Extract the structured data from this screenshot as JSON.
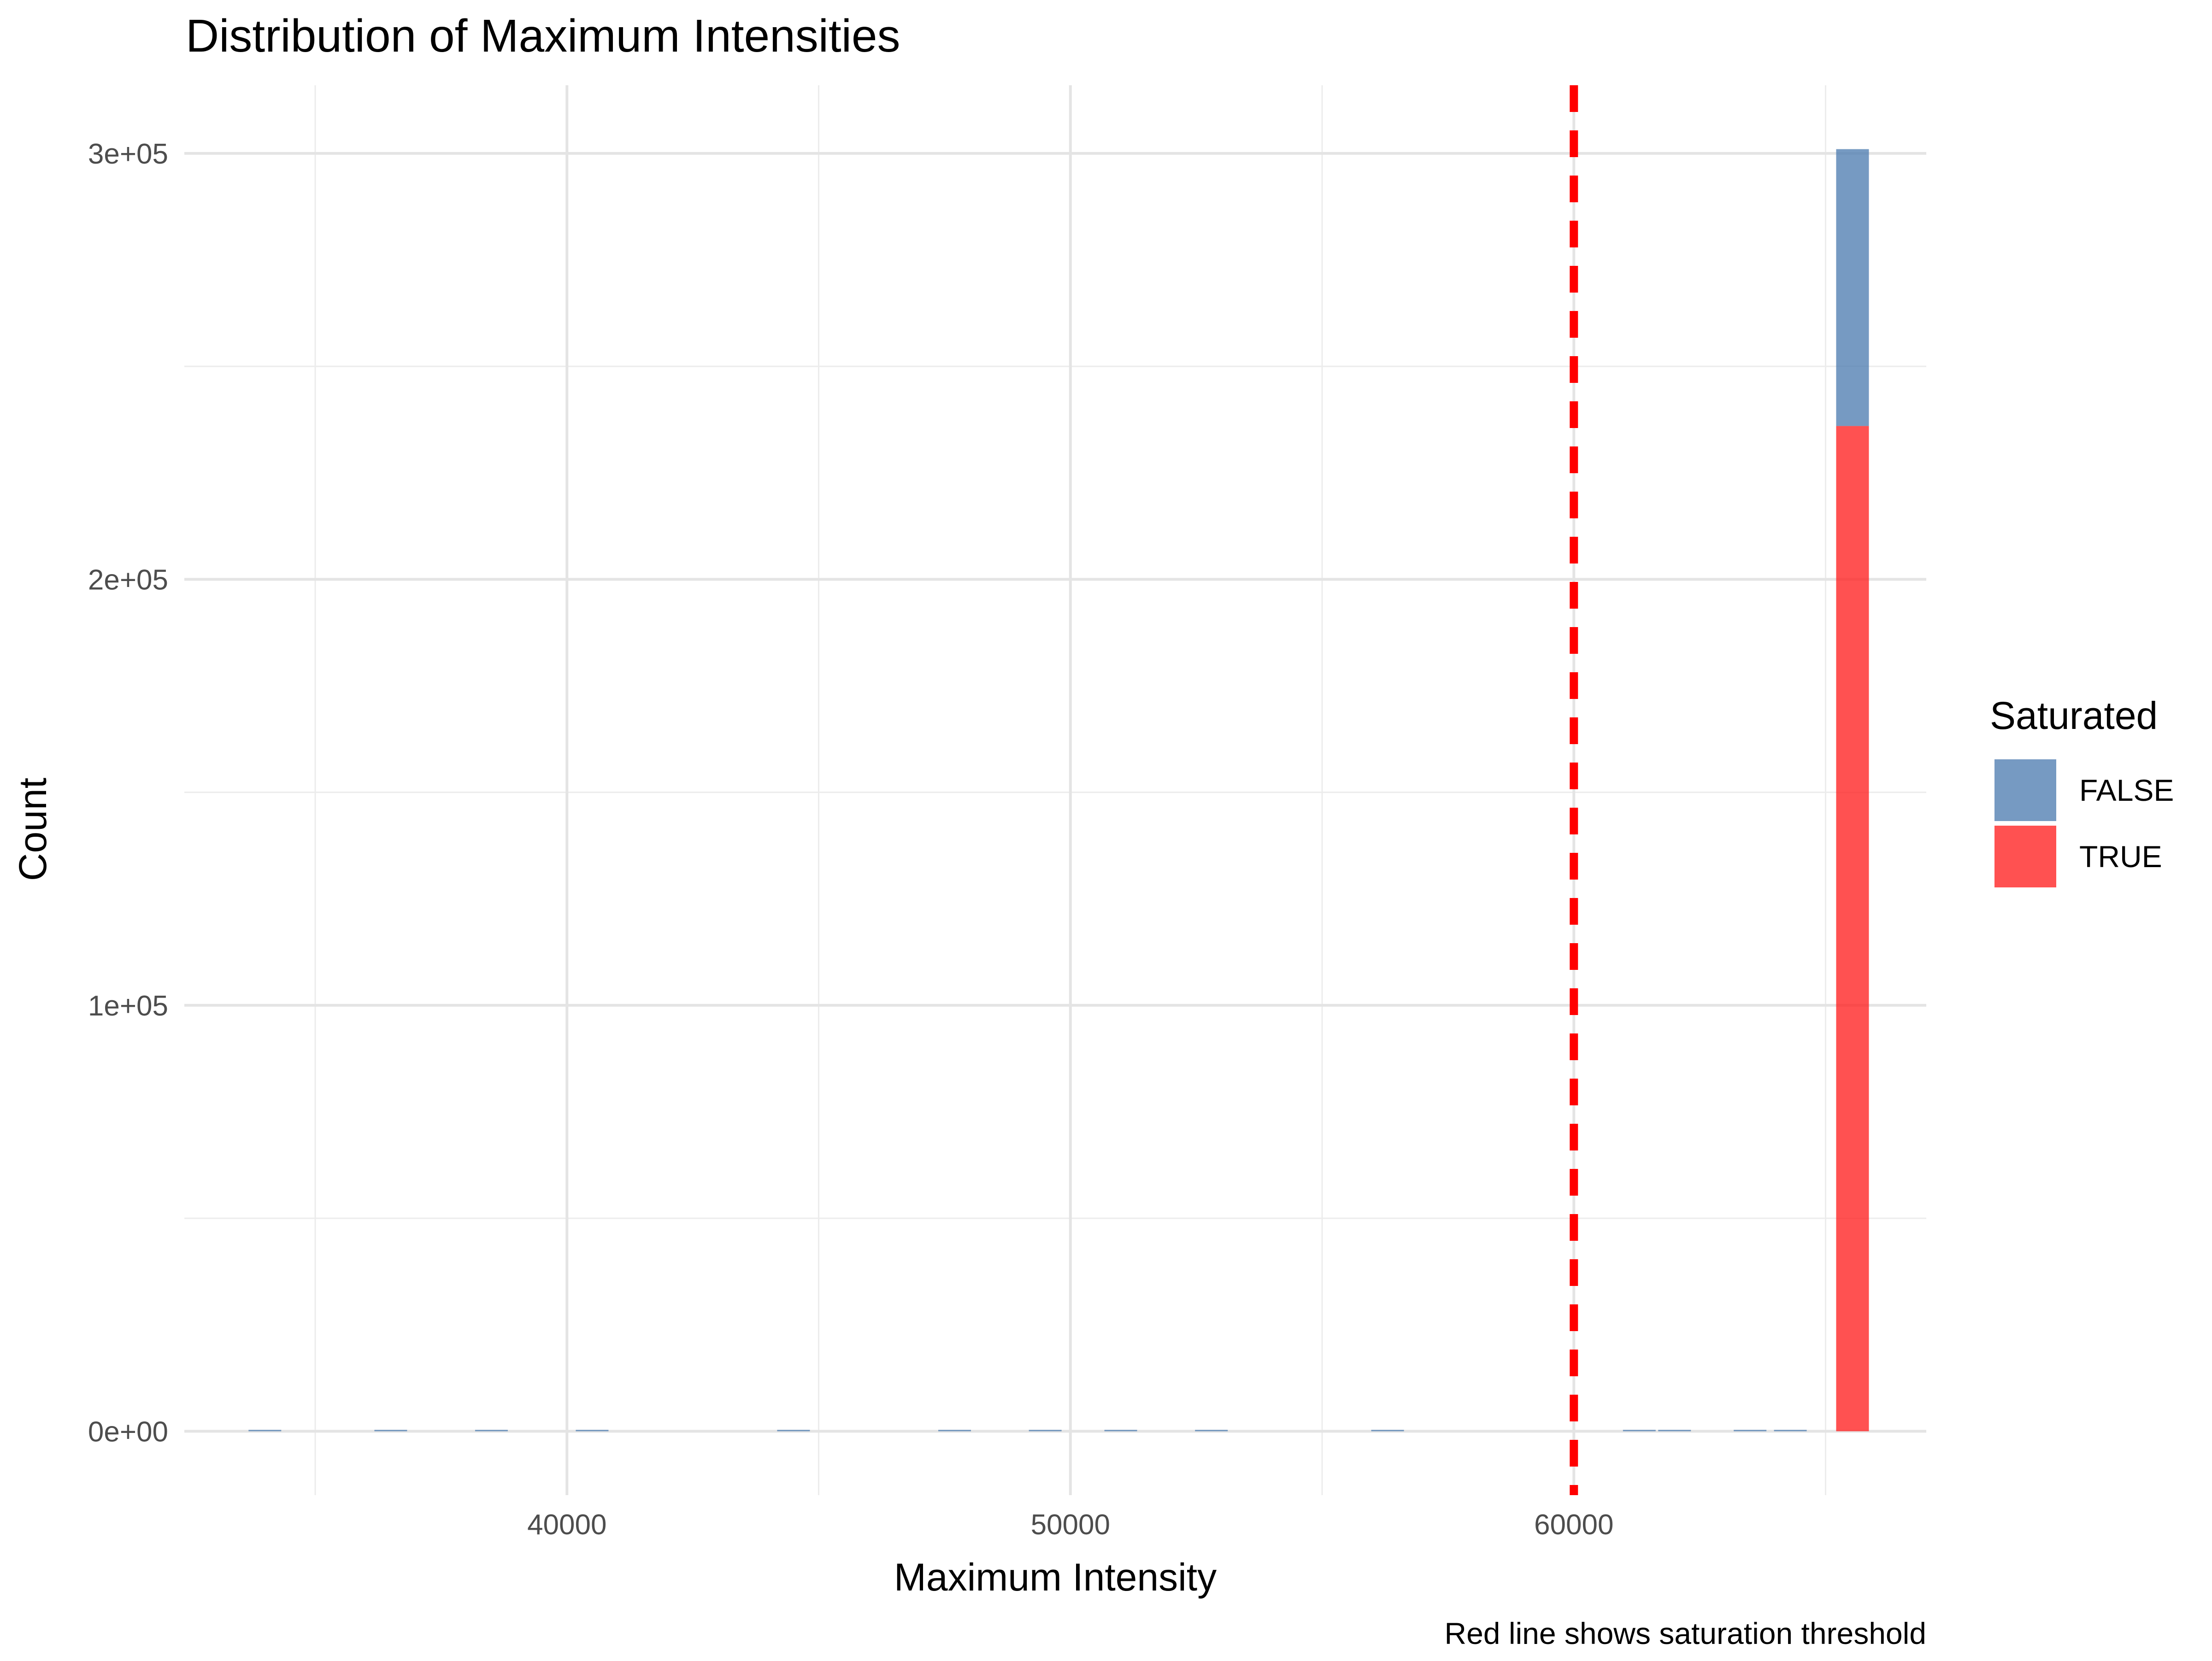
{
  "chart_data": {
    "type": "bar",
    "title": "Distribution of Maximum Intensities",
    "xlabel": "Maximum Intensity",
    "ylabel": "Count",
    "caption": "Red line shows saturation threshold",
    "xlim": [
      32400,
      67000
    ],
    "ylim": [
      -15000,
      316000
    ],
    "x_ticks": [
      40000,
      50000,
      60000
    ],
    "x_tick_labels": [
      "40000",
      "50000",
      "60000"
    ],
    "x_minor_ticks": [
      35000,
      45000,
      55000,
      65000
    ],
    "y_ticks": [
      0,
      100000,
      200000,
      300000
    ],
    "y_tick_labels": [
      "0e+00",
      "1e+05",
      "2e+05",
      "3e+05"
    ],
    "y_minor_ticks": [
      50000,
      150000,
      250000
    ],
    "grid": true,
    "bin_width": 650,
    "stacked": true,
    "legend": {
      "title": "Saturated",
      "position": "right",
      "entries": [
        {
          "label": "FALSE",
          "color": "#4F7DB1"
        },
        {
          "label": "TRUE",
          "color": "#FF2020"
        }
      ]
    },
    "series": [
      {
        "name": "FALSE",
        "color": "#4F7DB1",
        "opacity": 0.78,
        "x": [
          34000,
          36500,
          38500,
          40500,
          44500,
          47700,
          49500,
          51000,
          52800,
          56300,
          61300,
          62000,
          63500,
          64300,
          65535
        ],
        "values": [
          10,
          40,
          120,
          30,
          90,
          50,
          40,
          60,
          50,
          40,
          200,
          250,
          120,
          150,
          65000
        ]
      },
      {
        "name": "TRUE",
        "color": "#FF2020",
        "opacity": 0.78,
        "x": [
          65535
        ],
        "values": [
          236000
        ]
      }
    ],
    "reference_line": {
      "x": 60000,
      "color": "#FF0000",
      "style": "dashed"
    }
  }
}
